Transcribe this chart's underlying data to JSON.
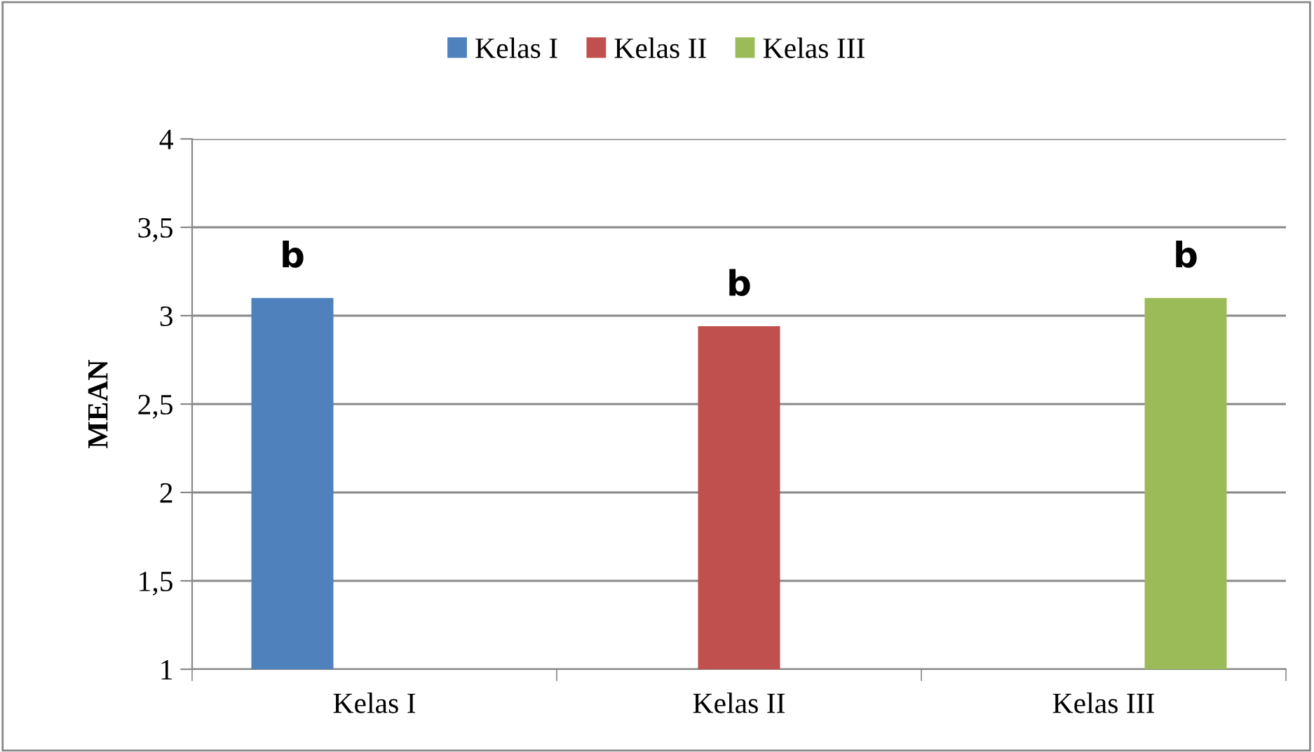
{
  "chart_data": {
    "type": "bar",
    "ylabel": "MEAN",
    "categories": [
      "Kelas I",
      "Kelas II",
      "Kelas III"
    ],
    "series": [
      {
        "name": "Kelas I",
        "color": "#4f81bd",
        "values": [
          3.1,
          null,
          null
        ]
      },
      {
        "name": "Kelas II",
        "color": "#c0504d",
        "values": [
          null,
          2.94,
          null
        ]
      },
      {
        "name": "Kelas III",
        "color": "#9bbb59",
        "values": [
          null,
          null,
          3.1
        ]
      }
    ],
    "ylim": [
      1,
      4
    ],
    "yticks": [
      1,
      {
        "value": 1.5,
        "label": "1,5"
      },
      2,
      {
        "value": 2.5,
        "label": "2,5"
      },
      3,
      {
        "value": 3.5,
        "label": "3,5"
      },
      4
    ],
    "grid": "y",
    "legend": "top",
    "annotations": [
      "b",
      "b",
      "b"
    ]
  }
}
